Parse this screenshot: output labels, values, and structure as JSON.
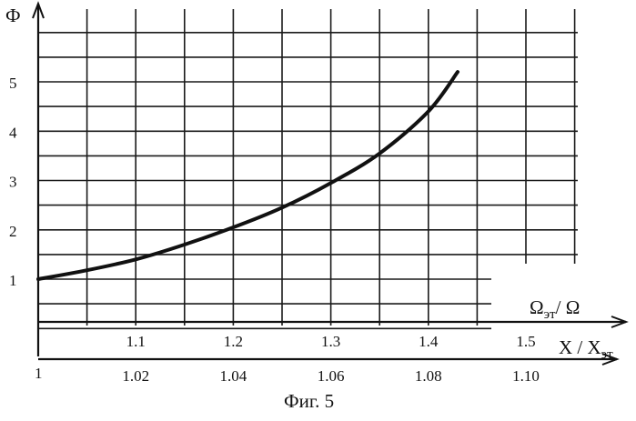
{
  "figure": {
    "caption": "Фиг. 5"
  },
  "chart_data": {
    "type": "line",
    "y_axis": {
      "label": "Ф",
      "ticks": [
        1,
        2,
        3,
        4,
        5
      ],
      "range": [
        0.5,
        5.9
      ]
    },
    "x_axis_primary": {
      "label": "X / X",
      "label_sub": "эт",
      "ticks": [
        "1.1",
        "1.2",
        "1.3",
        "1.4",
        "1.5"
      ],
      "start_tick": "1",
      "range": [
        1.0,
        1.5
      ]
    },
    "x_axis_secondary": {
      "label": "Ω",
      "label_sub": "эт",
      "label_tail": "/ Ω",
      "ticks": [
        "1.02",
        "1.04",
        "1.06",
        "1.08",
        "1.10"
      ],
      "range": [
        1.0,
        1.1
      ]
    },
    "grid": true,
    "series": [
      {
        "x": [
          1.0,
          1.05,
          1.1,
          1.15,
          1.2,
          1.25,
          1.3,
          1.35,
          1.4,
          1.43
        ],
        "y": [
          1.0,
          1.18,
          1.4,
          1.7,
          2.05,
          2.45,
          2.95,
          3.55,
          4.4,
          5.2
        ]
      }
    ]
  }
}
